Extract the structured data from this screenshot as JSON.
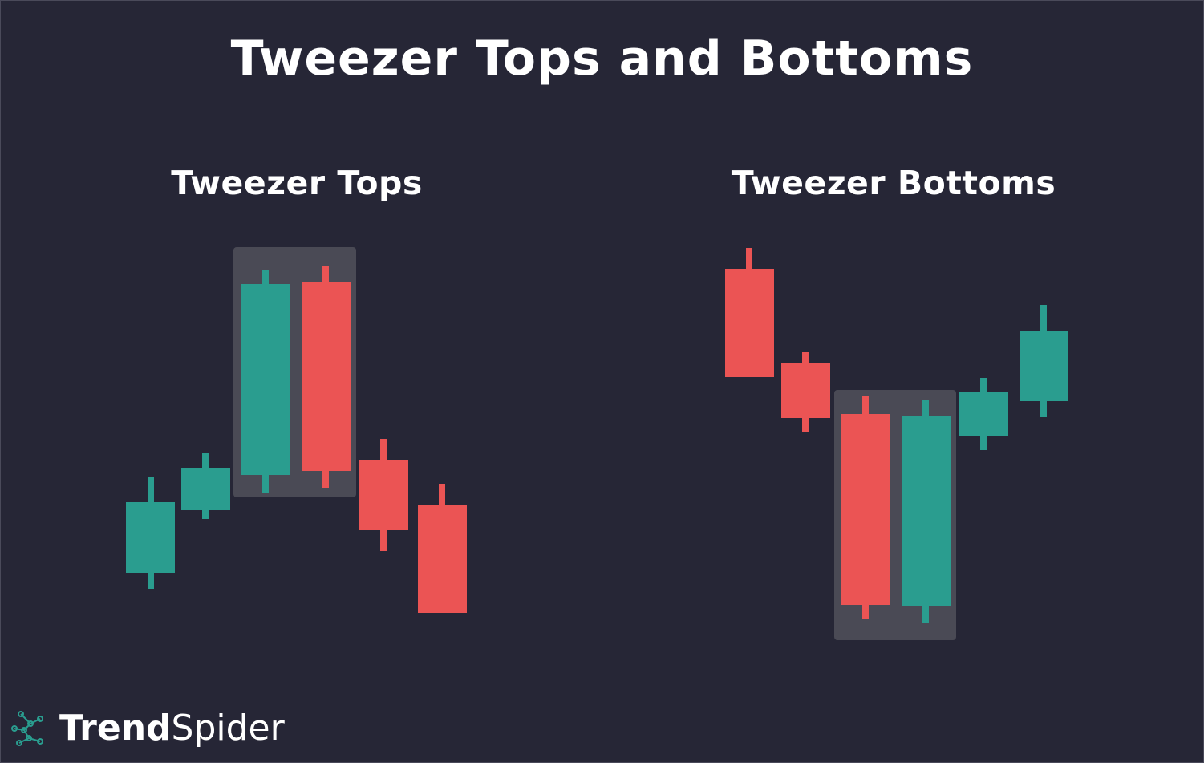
{
  "title": "Tweezer Tops and Bottoms",
  "panels": {
    "tops": {
      "title": "Tweezer Tops"
    },
    "bottoms": {
      "title": "Tweezer Bottoms"
    }
  },
  "colors": {
    "background": "#262636",
    "bullish": "#2a9d8f",
    "bearish": "#eb5454",
    "highlight": "#4a4a55",
    "text": "#ffffff"
  },
  "logo": {
    "name_bold": "Trend",
    "name_light": "Spider",
    "icon": "spider-web-icon"
  }
}
